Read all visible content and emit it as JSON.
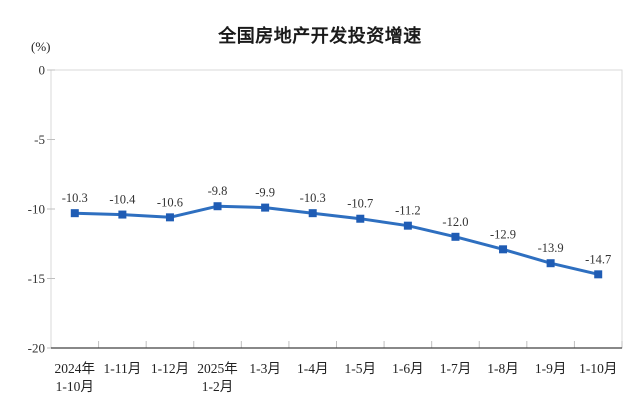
{
  "title": "全国房地产开发投资增速",
  "y_axis_unit": "(%)",
  "chart_data": {
    "type": "line",
    "title": "全国房地产开发投资增速",
    "xlabel": "",
    "ylabel": "(%)",
    "categories": [
      "2024年\n1-10月",
      "1-11月",
      "1-12月",
      "2025年\n1-2月",
      "1-3月",
      "1-4月",
      "1-5月",
      "1-6月",
      "1-7月",
      "1-8月",
      "1-9月",
      "1-10月"
    ],
    "values": [
      -10.3,
      -10.4,
      -10.6,
      -9.8,
      -9.9,
      -10.3,
      -10.7,
      -11.2,
      -12.0,
      -12.9,
      -13.9,
      -14.7
    ],
    "data_labels": [
      "-10.3",
      "-10.4",
      "-10.6",
      "-9.8",
      "-9.9",
      "-10.3",
      "-10.7",
      "-11.2",
      "-12.0",
      "-12.9",
      "-13.9",
      "-14.7"
    ],
    "ylim": [
      -20,
      0
    ],
    "yticks": [
      0,
      -5,
      -10,
      -15,
      -20
    ],
    "grid": false,
    "legend": "none",
    "marker": "square",
    "line_color": "#2E6FC0",
    "marker_color": "#1F5CB4",
    "border_color": "#D9D9D9",
    "axis_color": "#404040",
    "tick_color": "#BFBFBF"
  }
}
